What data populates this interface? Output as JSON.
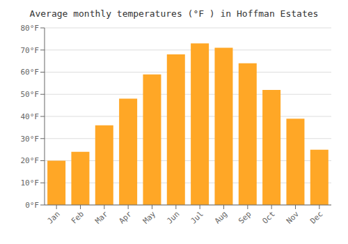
{
  "chart_data": {
    "type": "bar",
    "title": "Average monthly temperatures (°F ) in Hoffman Estates",
    "categories": [
      "Jan",
      "Feb",
      "Mar",
      "Apr",
      "May",
      "Jun",
      "Jul",
      "Aug",
      "Sep",
      "Oct",
      "Nov",
      "Dec"
    ],
    "values": [
      20,
      24,
      36,
      48,
      59,
      68,
      73,
      71,
      64,
      52,
      39,
      25
    ],
    "color": "#FFA726",
    "ylim": [
      0,
      80
    ],
    "yticks": [
      {
        "value": 0,
        "label": "0°F"
      },
      {
        "value": 10,
        "label": "10°F"
      },
      {
        "value": 20,
        "label": "20°F"
      },
      {
        "value": 30,
        "label": "30°F"
      },
      {
        "value": 40,
        "label": "40°F"
      },
      {
        "value": 50,
        "label": "50°F"
      },
      {
        "value": 60,
        "label": "60°F"
      },
      {
        "value": 70,
        "label": "70°F"
      },
      {
        "value": 80,
        "label": "80°F"
      }
    ],
    "grid": true
  }
}
